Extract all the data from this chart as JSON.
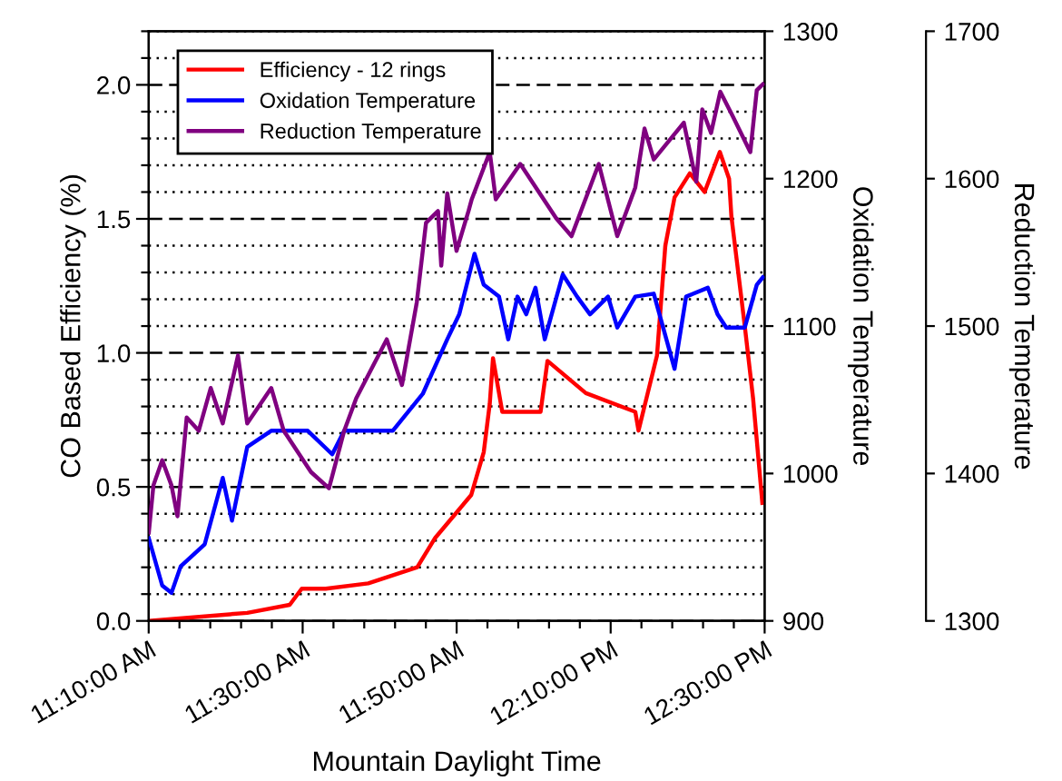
{
  "chart_data": {
    "type": "line",
    "xlabel": "Mountain Daylight Time",
    "ylabel": "CO Based Efficiency (%)",
    "y2label": "Oxidation Temperature",
    "y3label": "Reduction Temperature",
    "xlim": [
      11.1667,
      12.5
    ],
    "xticks": [
      {
        "value": 11.1667,
        "label": "11:10:00 AM"
      },
      {
        "value": 11.2333,
        "label": null
      },
      {
        "value": 11.3,
        "label": null
      },
      {
        "value": 11.3667,
        "label": null
      },
      {
        "value": 11.4333,
        "label": null
      },
      {
        "value": 11.5,
        "label": "11:30:00 AM"
      },
      {
        "value": 11.5667,
        "label": null
      },
      {
        "value": 11.6333,
        "label": null
      },
      {
        "value": 11.7,
        "label": null
      },
      {
        "value": 11.7667,
        "label": null
      },
      {
        "value": 11.8333,
        "label": "11:50:00 AM"
      },
      {
        "value": 11.9,
        "label": null
      },
      {
        "value": 11.9667,
        "label": null
      },
      {
        "value": 12.0333,
        "label": null
      },
      {
        "value": 12.1,
        "label": null
      },
      {
        "value": 12.1667,
        "label": "12:10:00 PM"
      },
      {
        "value": 12.2333,
        "label": null
      },
      {
        "value": 12.3,
        "label": null
      },
      {
        "value": 12.3667,
        "label": null
      },
      {
        "value": 12.4333,
        "label": null
      },
      {
        "value": 12.5,
        "label": "12:30:00 PM"
      }
    ],
    "ylim": [
      0,
      2.2
    ],
    "yticks": [
      {
        "value": 0,
        "label": "0.0"
      },
      {
        "value": 0.1,
        "label": null
      },
      {
        "value": 0.2,
        "label": null
      },
      {
        "value": 0.3,
        "label": null
      },
      {
        "value": 0.4,
        "label": null
      },
      {
        "value": 0.5,
        "label": "0.5"
      },
      {
        "value": 0.6,
        "label": null
      },
      {
        "value": 0.7,
        "label": null
      },
      {
        "value": 0.8,
        "label": null
      },
      {
        "value": 0.9,
        "label": null
      },
      {
        "value": 1.0,
        "label": "1.0"
      },
      {
        "value": 1.1,
        "label": null
      },
      {
        "value": 1.2,
        "label": null
      },
      {
        "value": 1.3,
        "label": null
      },
      {
        "value": 1.4,
        "label": null
      },
      {
        "value": 1.5,
        "label": "1.5"
      },
      {
        "value": 1.6,
        "label": null
      },
      {
        "value": 1.7,
        "label": null
      },
      {
        "value": 1.8,
        "label": null
      },
      {
        "value": 1.9,
        "label": null
      },
      {
        "value": 2.0,
        "label": "2.0"
      },
      {
        "value": 2.1,
        "label": null
      },
      {
        "value": 2.2,
        "label": null
      }
    ],
    "y2lim": [
      900,
      1300
    ],
    "y2ticks": [
      900,
      1000,
      1100,
      1200,
      1300
    ],
    "y3lim": [
      1300,
      1700
    ],
    "y3ticks": [
      1300,
      1400,
      1500,
      1600,
      1700
    ],
    "grid": "y",
    "legend": "top left",
    "line_style": "solid",
    "marker": "none",
    "series": [
      {
        "name": "Efficiency - 12 rings",
        "color": "#ff0000",
        "x": [
          11.167,
          11.38,
          11.472,
          11.498,
          11.55,
          11.642,
          11.748,
          11.787,
          11.865,
          11.892,
          11.905,
          11.912,
          11.932,
          12.015,
          12.03,
          12.113,
          12.22,
          12.227,
          12.247,
          12.267,
          12.285,
          12.305,
          12.338,
          12.37,
          12.403,
          12.423,
          12.428,
          12.457,
          12.475,
          12.495
        ],
        "values": [
          0.0,
          0.03,
          0.06,
          0.12,
          0.12,
          0.14,
          0.2,
          0.31,
          0.47,
          0.63,
          0.81,
          0.98,
          0.78,
          0.78,
          0.97,
          0.85,
          0.78,
          0.71,
          0.85,
          0.99,
          1.4,
          1.58,
          1.67,
          1.6,
          1.75,
          1.65,
          1.51,
          1.1,
          0.83,
          0.44
        ]
      },
      {
        "name": "Oxidation Temperature",
        "color": "#0000ff",
        "axis": "y2",
        "x": [
          11.167,
          11.196,
          11.216,
          11.236,
          11.288,
          11.327,
          11.347,
          11.38,
          11.432,
          11.511,
          11.564,
          11.59,
          11.695,
          11.76,
          11.813,
          11.839,
          11.872,
          11.892,
          11.925,
          11.945,
          11.965,
          11.984,
          12.004,
          12.024,
          12.063,
          12.094,
          12.122,
          12.161,
          12.181,
          12.22,
          12.26,
          12.305,
          12.33,
          12.377,
          12.398,
          12.417,
          12.457,
          12.483,
          12.496
        ],
        "values": [
          956,
          924,
          919,
          937,
          952,
          997,
          968,
          1018,
          1029,
          1029,
          1013,
          1029,
          1029,
          1054,
          1091,
          1108,
          1149,
          1128,
          1120,
          1091,
          1120,
          1108,
          1126,
          1091,
          1135,
          1120,
          1108,
          1120,
          1099,
          1120,
          1122,
          1071,
          1120,
          1126,
          1108,
          1099,
          1099,
          1128,
          1133
        ]
      },
      {
        "name": "Reduction Temperature",
        "color": "#800080",
        "axis": "y3",
        "x": [
          11.167,
          11.177,
          11.196,
          11.216,
          11.229,
          11.249,
          11.275,
          11.301,
          11.327,
          11.36,
          11.38,
          11.432,
          11.459,
          11.518,
          11.557,
          11.59,
          11.616,
          11.682,
          11.715,
          11.747,
          11.767,
          11.793,
          11.8,
          11.813,
          11.833,
          11.859,
          11.866,
          11.905,
          11.918,
          11.971,
          12.049,
          12.082,
          12.141,
          12.181,
          12.22,
          12.24,
          12.26,
          12.325,
          12.352,
          12.365,
          12.384,
          12.404,
          12.43,
          12.469,
          12.483,
          12.496
        ],
        "values": [
          1360,
          1392,
          1409,
          1392,
          1371,
          1438,
          1429,
          1458,
          1434,
          1480,
          1434,
          1458,
          1429,
          1401,
          1390,
          1429,
          1451,
          1491,
          1460,
          1516,
          1570,
          1578,
          1541,
          1590,
          1551,
          1578,
          1586,
          1618,
          1586,
          1610,
          1573,
          1561,
          1610,
          1561,
          1594,
          1634,
          1613,
          1638,
          1598,
          1647,
          1631,
          1659,
          1643,
          1618,
          1660,
          1664
        ]
      }
    ]
  }
}
